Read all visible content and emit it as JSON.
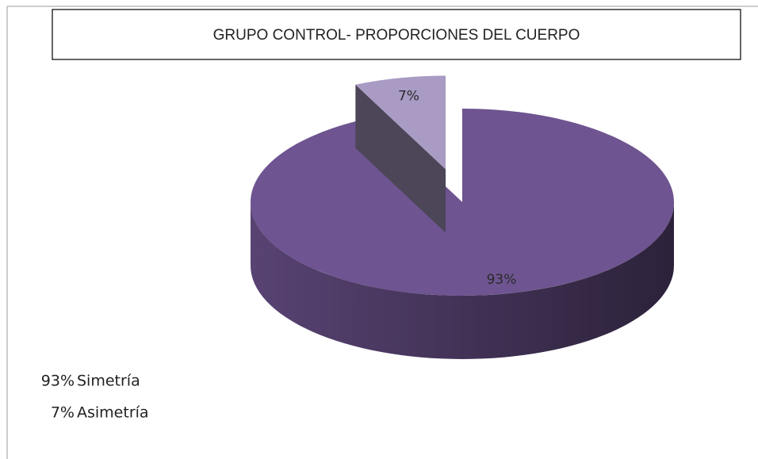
{
  "chart_data": {
    "type": "pie",
    "title": "GRUPO CONTROL- PROPORCIONES DEL CUERPO",
    "categories": [
      "Simetría",
      "Asimetría"
    ],
    "values": [
      93,
      7
    ],
    "value_labels": [
      "93%",
      "7%"
    ],
    "colors": [
      "#6e5490",
      "#a99bc4"
    ]
  }
}
